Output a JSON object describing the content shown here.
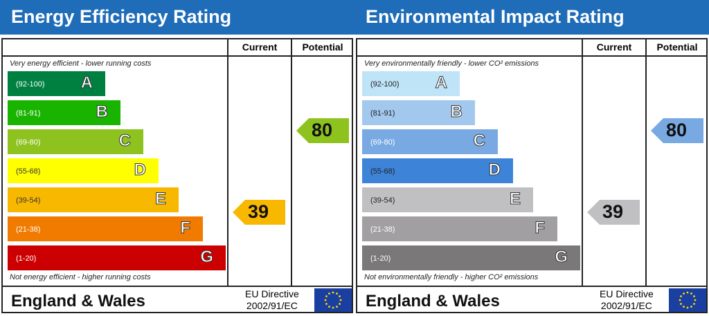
{
  "panels": [
    {
      "title": "Energy Efficiency Rating",
      "current_label": "Current",
      "potential_label": "Potential",
      "top_note": "Very energy efficient - lower running costs",
      "bottom_note": "Not energy efficient - higher running costs",
      "footer": "England & Wales",
      "directive_line1": "EU Directive",
      "directive_line2": "2002/91/EC",
      "bands": [
        {
          "letter": "A",
          "range": "(92-100)",
          "color": "#008040",
          "text": "#fff"
        },
        {
          "letter": "B",
          "range": "(81-91)",
          "color": "#19b400",
          "text": "#fff"
        },
        {
          "letter": "C",
          "range": "(69-80)",
          "color": "#8dc21f",
          "text": "#fff"
        },
        {
          "letter": "D",
          "range": "(55-68)",
          "color": "#ffff00",
          "text": "#333"
        },
        {
          "letter": "E",
          "range": "(39-54)",
          "color": "#f9b800",
          "text": "#333"
        },
        {
          "letter": "F",
          "range": "(21-38)",
          "color": "#f07b00",
          "text": "#fff"
        },
        {
          "letter": "G",
          "range": "(1-20)",
          "color": "#cc0000",
          "text": "#fff"
        }
      ],
      "current": {
        "value": "39",
        "color": "#f9b800"
      },
      "potential": {
        "value": "80",
        "color": "#8dc21f"
      }
    },
    {
      "title": "Environmental Impact Rating",
      "current_label": "Current",
      "potential_label": "Potential",
      "top_note": "Very environmentally friendly - lower CO² emissions",
      "bottom_note": "Not environmentally friendly - higher CO² emissions",
      "footer": "England & Wales",
      "directive_line1": "EU Directive",
      "directive_line2": "2002/91/EC",
      "bands": [
        {
          "letter": "A",
          "range": "(92-100)",
          "color": "#bfe3f7",
          "text": "#222"
        },
        {
          "letter": "B",
          "range": "(81-91)",
          "color": "#a3c8ee",
          "text": "#222"
        },
        {
          "letter": "C",
          "range": "(69-80)",
          "color": "#78a9e2",
          "text": "#fff"
        },
        {
          "letter": "D",
          "range": "(55-68)",
          "color": "#3d83d8",
          "text": "#222"
        },
        {
          "letter": "E",
          "range": "(39-54)",
          "color": "#c0c0c2",
          "text": "#222"
        },
        {
          "letter": "F",
          "range": "(21-38)",
          "color": "#a29fa3",
          "text": "#fff"
        },
        {
          "letter": "G",
          "range": "(1-20)",
          "color": "#7a7879",
          "text": "#fff"
        }
      ],
      "current": {
        "value": "39",
        "color": "#c0c0c2"
      },
      "potential": {
        "value": "80",
        "color": "#78a9e2"
      }
    }
  ],
  "chart_data": [
    {
      "type": "bar",
      "title": "Energy Efficiency Rating",
      "categories": [
        "A",
        "B",
        "C",
        "D",
        "E",
        "F",
        "G"
      ],
      "current": 39,
      "potential": 80
    },
    {
      "type": "bar",
      "title": "Environmental Impact Rating",
      "categories": [
        "A",
        "B",
        "C",
        "D",
        "E",
        "F",
        "G"
      ],
      "current": 39,
      "potential": 80
    }
  ]
}
